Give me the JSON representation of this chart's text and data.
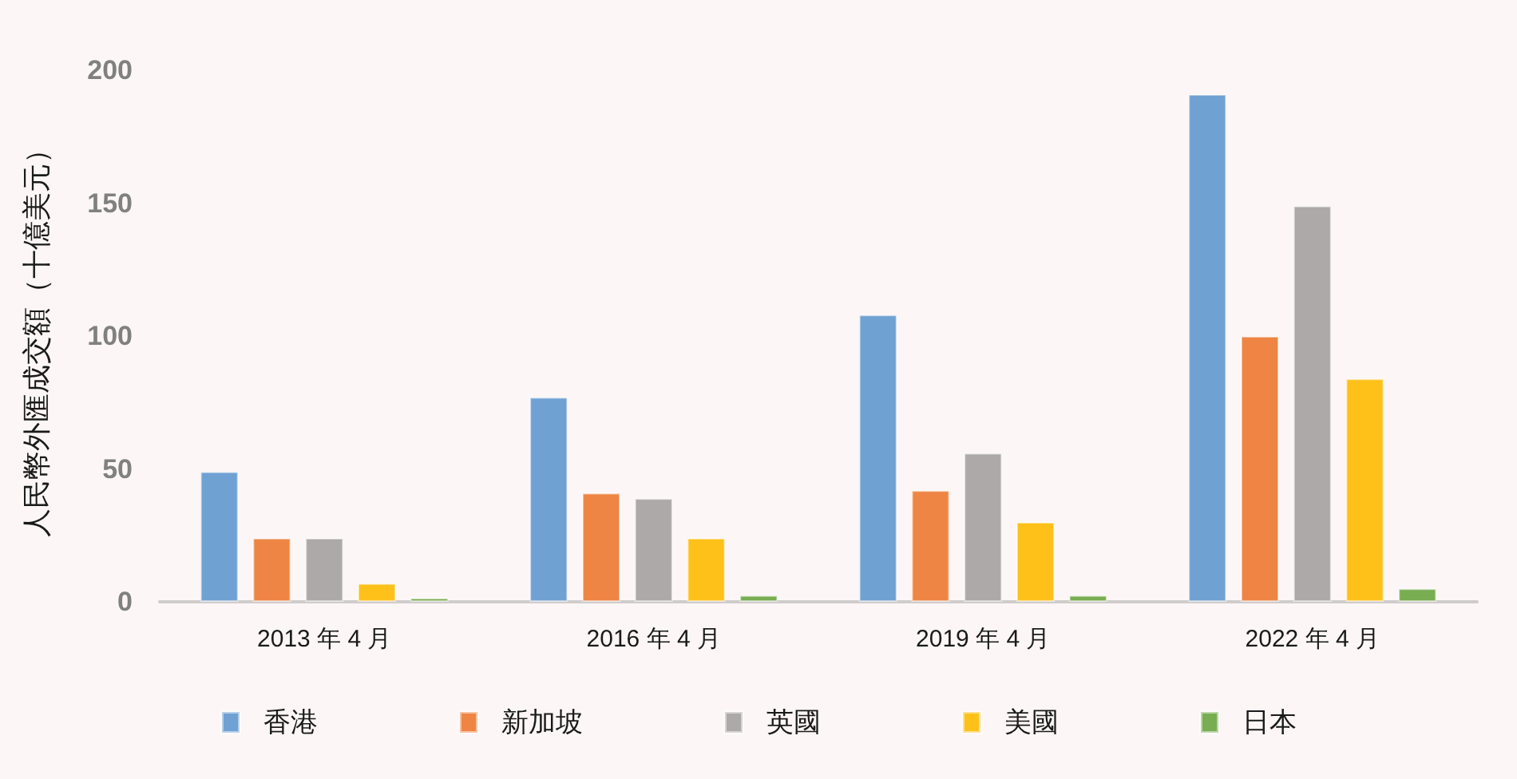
{
  "chart_data": {
    "type": "bar",
    "ylabel": "人民幣外匯成交額（十億美元）",
    "categories": [
      "2013 年 4 月",
      "2016 年 4 月",
      "2019 年 4 月",
      "2022 年 4 月"
    ],
    "series": [
      {
        "name": "香港",
        "color": "#6fa1d3",
        "values": [
          49,
          77,
          108,
          191
        ]
      },
      {
        "name": "新加坡",
        "color": "#ee8544",
        "values": [
          24,
          41,
          42,
          100
        ]
      },
      {
        "name": "英國",
        "color": "#ada9a8",
        "values": [
          24,
          39,
          56,
          149
        ]
      },
      {
        "name": "美國",
        "color": "#fec11a",
        "values": [
          7,
          24,
          30,
          84
        ]
      },
      {
        "name": "日本",
        "color": "#78ad51",
        "values": [
          1.5,
          2.5,
          2.5,
          5
        ]
      }
    ],
    "ylim": [
      0,
      200
    ],
    "yticks": [
      0,
      50,
      100,
      150,
      200
    ],
    "legend": "bottom"
  }
}
